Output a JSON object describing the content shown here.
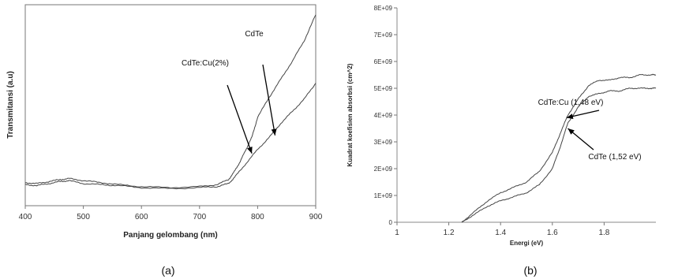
{
  "chart_data": [
    {
      "type": "line",
      "caption": "(a)",
      "xlabel": "Panjang gelombang (nm)",
      "ylabel": "Transmitansi (a.u)",
      "xlim": [
        400,
        900
      ],
      "xticks": [
        400,
        500,
        600,
        700,
        800,
        900
      ],
      "ylim": [
        0,
        100
      ],
      "grid": false,
      "series": [
        {
          "name": "CdTe",
          "x": [
            400,
            420,
            440,
            460,
            475,
            500,
            530,
            560,
            600,
            650,
            700,
            730,
            750,
            760,
            770,
            780,
            790,
            800,
            820,
            840,
            860,
            880,
            900
          ],
          "y": [
            11.5,
            11.0,
            12.0,
            13.0,
            13.5,
            12.5,
            11.5,
            10.5,
            9.5,
            9.0,
            9.5,
            10.5,
            13,
            17,
            22,
            28,
            34,
            44,
            54,
            63,
            72,
            82,
            95
          ]
        },
        {
          "name": "CdTe:Cu(2%)",
          "x": [
            400,
            420,
            440,
            460,
            475,
            500,
            530,
            560,
            600,
            650,
            700,
            730,
            750,
            760,
            780,
            800,
            820,
            840,
            860,
            880,
            900
          ],
          "y": [
            10.5,
            10.0,
            11.0,
            12.0,
            12.5,
            11.0,
            10.5,
            10.0,
            9.0,
            8.5,
            9.0,
            9.5,
            11,
            14,
            21,
            28,
            34,
            41,
            47,
            53,
            61
          ]
        }
      ],
      "annotations": [
        {
          "text": "CdTe",
          "target_x": 830,
          "target_y": 35
        },
        {
          "text": "CdTe:Cu(2%)",
          "target_x": 790,
          "target_y": 26
        }
      ]
    },
    {
      "type": "line",
      "caption": "(b)",
      "xlabel": "Energi (eV)",
      "ylabel": "Kuadrat koefisien absorbsi (cm^2)",
      "xlim": [
        1,
        2
      ],
      "xticks": [
        1,
        1.2,
        1.4,
        1.6,
        1.8
      ],
      "xtick_labels": [
        "1",
        "1.2",
        "1.4",
        "1.6",
        "1.8"
      ],
      "ylim": [
        0,
        8000000000
      ],
      "yticks": [
        0,
        1000000000,
        2000000000,
        3000000000,
        4000000000,
        5000000000,
        6000000000,
        7000000000,
        8000000000
      ],
      "ytick_labels": [
        "0",
        "1E+09",
        "2E+09",
        "3E+09",
        "4E+09",
        "5E+09",
        "6E+09",
        "7E+09",
        "8E+09"
      ],
      "grid": false,
      "series": [
        {
          "name": "CdTe:Cu (1,48 eV)",
          "x": [
            1.25,
            1.3,
            1.35,
            1.4,
            1.45,
            1.5,
            1.55,
            1.6,
            1.63,
            1.66,
            1.7,
            1.74,
            1.78,
            1.82,
            1.86,
            1.9,
            1.94,
            1.98,
            2.0
          ],
          "y": [
            0,
            400000000,
            800000000,
            1100000000,
            1300000000,
            1500000000,
            1900000000,
            2600000000,
            3300000000,
            4000000000,
            4600000000,
            5100000000,
            5300000000,
            5300000000,
            5400000000,
            5400000000,
            5500000000,
            5500000000,
            5500000000
          ]
        },
        {
          "name": "CdTe (1,52 eV)",
          "x": [
            1.25,
            1.3,
            1.35,
            1.4,
            1.45,
            1.5,
            1.55,
            1.6,
            1.63,
            1.66,
            1.7,
            1.74,
            1.78,
            1.82,
            1.86,
            1.9,
            1.94,
            1.98,
            2.0
          ],
          "y": [
            0,
            300000000,
            600000000,
            800000000,
            950000000,
            1100000000,
            1400000000,
            2000000000,
            2800000000,
            3700000000,
            4300000000,
            4700000000,
            4800000000,
            4900000000,
            4900000000,
            5000000000,
            5000000000,
            5000000000,
            5000000000
          ]
        }
      ],
      "annotations": [
        {
          "text": "CdTe:Cu (1,48 eV)",
          "target_x": 1.655,
          "target_y": 3900000000
        },
        {
          "text": "CdTe (1,52 eV)",
          "target_x": 1.66,
          "target_y": 3500000000
        }
      ]
    }
  ]
}
